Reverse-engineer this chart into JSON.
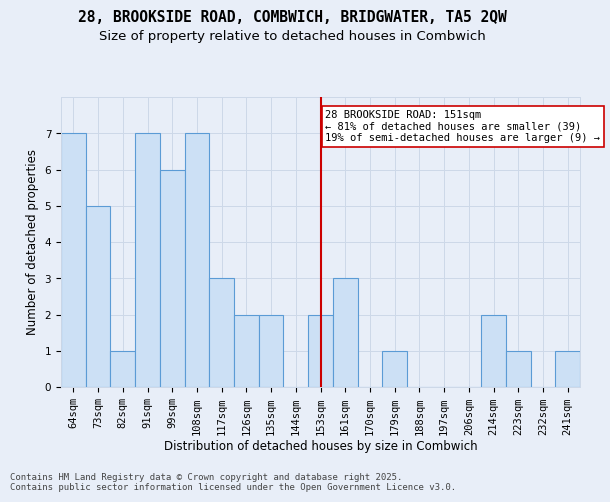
{
  "title_line1": "28, BROOKSIDE ROAD, COMBWICH, BRIDGWATER, TA5 2QW",
  "title_line2": "Size of property relative to detached houses in Combwich",
  "xlabel": "Distribution of detached houses by size in Combwich",
  "ylabel": "Number of detached properties",
  "categories": [
    "64sqm",
    "73sqm",
    "82sqm",
    "91sqm",
    "99sqm",
    "108sqm",
    "117sqm",
    "126sqm",
    "135sqm",
    "144sqm",
    "153sqm",
    "161sqm",
    "170sqm",
    "179sqm",
    "188sqm",
    "197sqm",
    "206sqm",
    "214sqm",
    "223sqm",
    "232sqm",
    "241sqm"
  ],
  "values": [
    7,
    5,
    1,
    7,
    6,
    7,
    3,
    2,
    2,
    0,
    2,
    3,
    0,
    1,
    0,
    0,
    0,
    2,
    1,
    0,
    1
  ],
  "bar_color": "#cce0f5",
  "bar_edge_color": "#5b9bd5",
  "highlight_index": 10,
  "highlight_line_color": "#cc0000",
  "annotation_text": "28 BROOKSIDE ROAD: 151sqm\n← 81% of detached houses are smaller (39)\n19% of semi-detached houses are larger (9) →",
  "annotation_box_color": "#ffffff",
  "annotation_box_edge_color": "#cc0000",
  "ylim": [
    0,
    8
  ],
  "yticks": [
    0,
    1,
    2,
    3,
    4,
    5,
    6,
    7
  ],
  "grid_color": "#cdd8e8",
  "background_color": "#e8eef8",
  "plot_bg_color": "#e8eef8",
  "footer_text": "Contains HM Land Registry data © Crown copyright and database right 2025.\nContains public sector information licensed under the Open Government Licence v3.0.",
  "title_fontsize": 10.5,
  "subtitle_fontsize": 9.5,
  "axis_label_fontsize": 8.5,
  "tick_fontsize": 7.5,
  "annotation_fontsize": 7.5,
  "footer_fontsize": 6.5
}
